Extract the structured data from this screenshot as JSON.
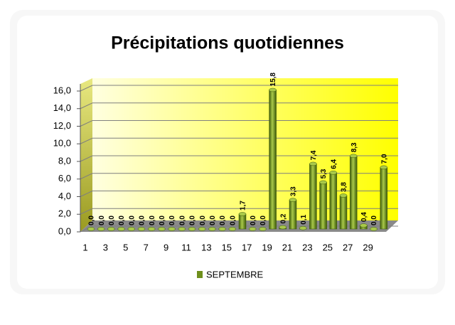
{
  "chart_data": {
    "type": "bar",
    "title": "Précipitations quotidiennes",
    "categories": [
      "1",
      null,
      "3",
      null,
      "5",
      null,
      "7",
      null,
      "9",
      null,
      "11",
      null,
      "13",
      null,
      "15",
      null,
      "17",
      null,
      "19",
      null,
      "21",
      null,
      "23",
      null,
      "25",
      null,
      "27",
      null,
      "29",
      null
    ],
    "series": [
      {
        "name": "SEPTEMBRE",
        "color": "#6e8f1c",
        "values": [
          0,
          0,
          0,
          0,
          0,
          0,
          0,
          0,
          0,
          0,
          0,
          0,
          0,
          0,
          0,
          1.7,
          0,
          0,
          15.8,
          0.2,
          3.3,
          0.1,
          7.4,
          5.3,
          6.4,
          3.8,
          8.3,
          0.4,
          0,
          7.0
        ],
        "value_labels": [
          "0,0",
          "0,0",
          "0,0",
          "0,0",
          "0,0",
          "0,0",
          "0,0",
          "0,0",
          "0,0",
          "0,0",
          "0,0",
          "0,0",
          "0,0",
          "0,0",
          "0,0",
          "1,7",
          "0,0",
          "0,0",
          "15,8",
          "0,2",
          "3,3",
          "0,1",
          "7,4",
          "5,3",
          "6,4",
          "3,8",
          "8,3",
          "0,4",
          "0,0",
          "7,0"
        ]
      }
    ],
    "ylim": [
      0,
      16
    ],
    "yticks": [
      {
        "value": 0,
        "label": "0,0"
      },
      {
        "value": 2,
        "label": "2,0"
      },
      {
        "value": 4,
        "label": "4,0"
      },
      {
        "value": 6,
        "label": "6,0"
      },
      {
        "value": 8,
        "label": "8,0"
      },
      {
        "value": 10,
        "label": "10,0"
      },
      {
        "value": 12,
        "label": "12,0"
      },
      {
        "value": 14,
        "label": "14,0"
      },
      {
        "value": 16,
        "label": "16,0"
      }
    ],
    "grid": true,
    "legend": "bottom"
  }
}
